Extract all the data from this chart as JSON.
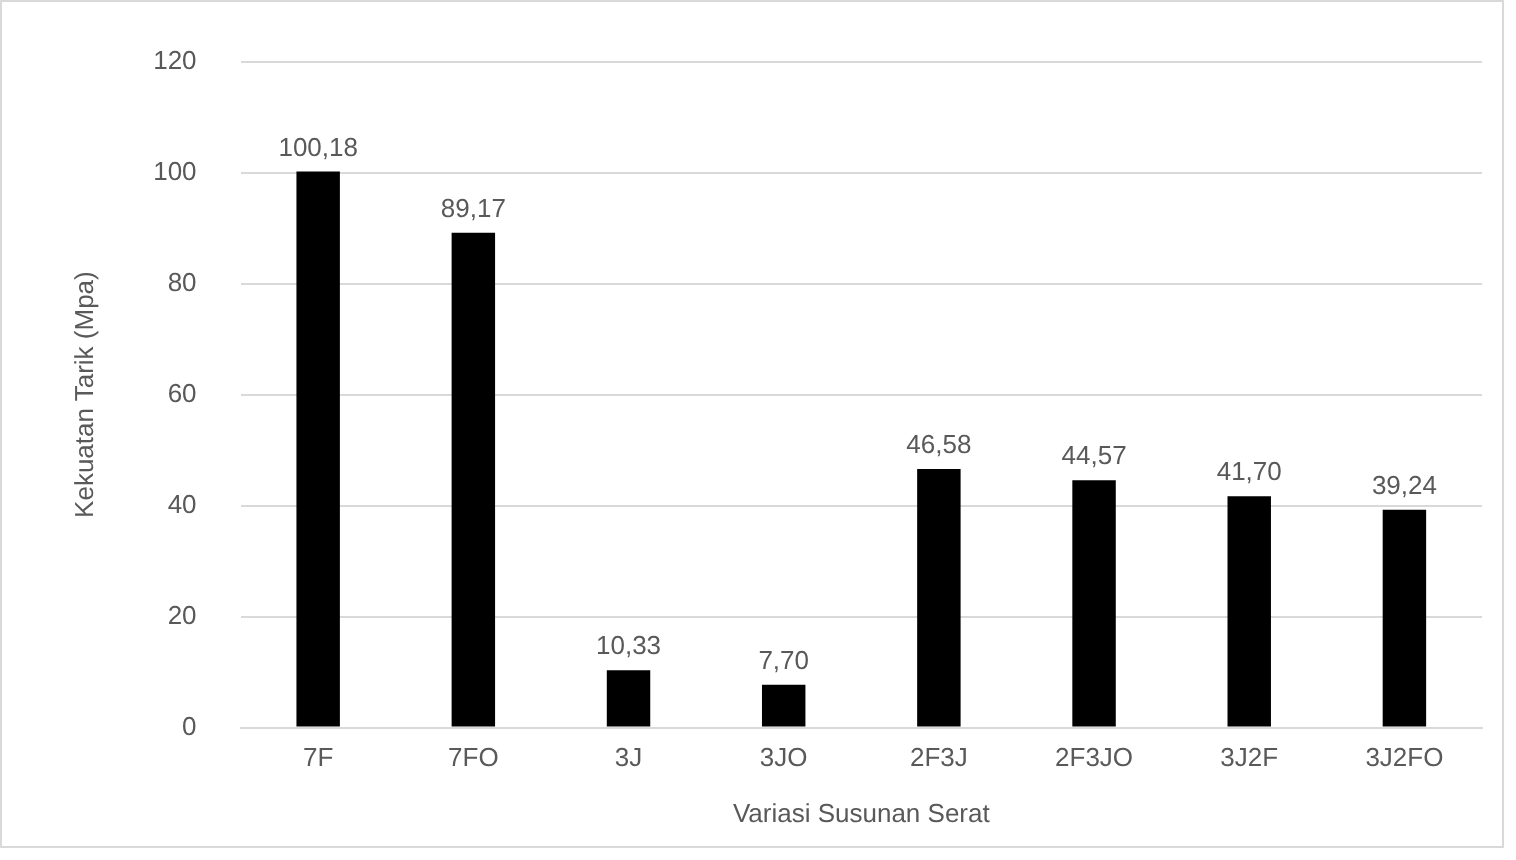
{
  "chart_data": {
    "type": "bar",
    "xlabel": "Variasi Susunan Serat",
    "ylabel": "Kekuatan Tarik (Mpa)",
    "categories": [
      "7F",
      "7FO",
      "3J",
      "3JO",
      "2F3J",
      "2F3JO",
      "3J2F",
      "3J2FO"
    ],
    "values": [
      100.18,
      89.17,
      10.33,
      7.7,
      46.58,
      44.57,
      41.7,
      39.24
    ],
    "value_labels": [
      "100,18",
      "89,17",
      "10,33",
      "7,70",
      "46,58",
      "44,57",
      "41,70",
      "39,24"
    ],
    "color": "#000000",
    "ylim": [
      0,
      120
    ],
    "yticks": [
      0,
      20,
      40,
      60,
      80,
      100,
      120
    ],
    "grid": "y",
    "legend": false
  }
}
